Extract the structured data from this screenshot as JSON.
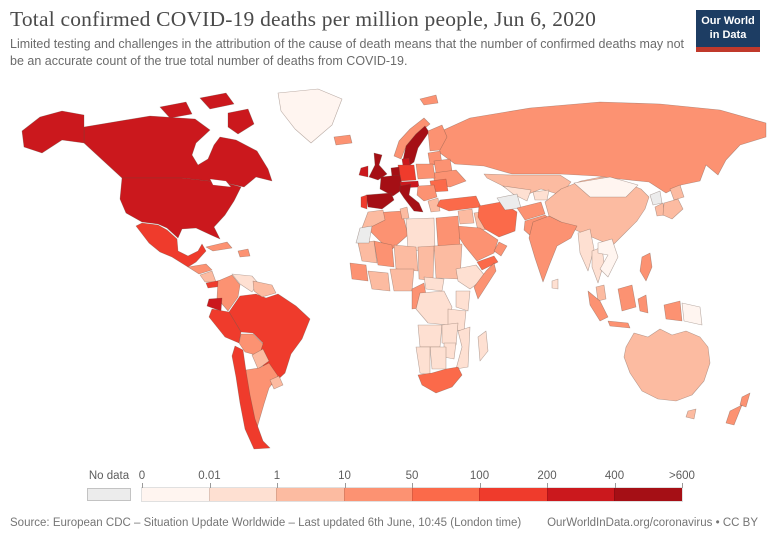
{
  "header": {
    "title": "Total confirmed COVID-19 deaths per million people, Jun 6, 2020",
    "subtitle": "Limited testing and challenges in the attribution of the cause of death means that the number of confirmed deaths may not be an accurate count of the true total number of deaths from COVID-19."
  },
  "logo": {
    "line1": "Our World",
    "line2": "in Data",
    "bg_color": "#1d3d63",
    "accent_color": "#c0392b"
  },
  "legend": {
    "no_data_label": "No data",
    "no_data_color": "#ececec",
    "tick_labels": [
      "0",
      "0.01",
      "1",
      "10",
      "50",
      "100",
      "200",
      "400",
      ">600"
    ],
    "band_colors": [
      "#fff5f0",
      "#fee0d2",
      "#fcbba1",
      "#fc9272",
      "#fb6a4a",
      "#ef3b2c",
      "#cb181d",
      "#a50f15"
    ]
  },
  "footer": {
    "source": "Source: European CDC – Situation Update Worldwide – Last updated 6th June, 10:45 (London time)",
    "link": "OurWorldInData.org/coronavirus",
    "separator": "•",
    "license": "CC BY"
  },
  "chart_data": {
    "type": "choropleth",
    "title": "Total confirmed COVID-19 deaths per million people",
    "date": "Jun 6, 2020",
    "unit": "deaths per million people",
    "bins": [
      "0–0.01",
      "0.01–1",
      "1–10",
      "10–50",
      "50–100",
      "100–200",
      "200–400",
      "400–>600"
    ],
    "no_data_regions": [
      "turkmenistan",
      "north-korea",
      "western-sahara"
    ],
    "countries": {
      "united-states": 6,
      "canada": 6,
      "greenland": 0,
      "iceland": 3,
      "mexico": 5,
      "guatemala": 3,
      "nicaragua": 2,
      "panama": 5,
      "cuba": 3,
      "dominican-republic": 3,
      "colombia": 3,
      "venezuela": 1,
      "guyana": 2,
      "ecuador": 6,
      "peru": 5,
      "brazil": 5,
      "bolivia": 3,
      "paraguay": 2,
      "chile": 5,
      "argentina": 3,
      "uruguay": 2,
      "united-kingdom": 7,
      "ireland": 6,
      "france": 7,
      "belgium-netherlands": 7,
      "germany": 5,
      "denmark": 6,
      "norway": 3,
      "sweden": 7,
      "finland": 3,
      "poland": 3,
      "baltic-states": 3,
      "belarus": 3,
      "ukraine": 3,
      "romania": 4,
      "balkans": 3,
      "greece": 2,
      "spain": 7,
      "portugal": 5,
      "italy": 7,
      "switzerland-austria": 6,
      "svalbard": 3,
      "russia": 3,
      "turkey": 4,
      "syria-levant": 2,
      "iraq": 2,
      "iran": 4,
      "saudi-arabia": 3,
      "yemen": 4,
      "oman": 3,
      "kazakhstan": 2,
      "uzbekistan": 1,
      "turkmenistan": "no-data",
      "kyrgyzstan-tajikistan": 1,
      "afghanistan": 3,
      "pakistan": 3,
      "india": 3,
      "sri-lanka": 1,
      "china": 2,
      "mongolia": 0,
      "north-korea": "no-data",
      "south-korea": 2,
      "japan": 2,
      "myanmar": 1,
      "thailand": 1,
      "vietnam-laos": 0,
      "malaysia": 2,
      "indonesia": 3,
      "philippines": 3,
      "papua-new-guinea": 0,
      "australia": 2,
      "new-zealand": 3,
      "morocco": 2,
      "western-sahara": "no-data",
      "algeria": 3,
      "tunisia": 2,
      "libya": 1,
      "egypt": 3,
      "mauritania": 2,
      "mali": 3,
      "niger": 2,
      "chad": 2,
      "sudan": 2,
      "ethiopia": 1,
      "somalia": 3,
      "senegal-guinea": 3,
      "ivory-coast-ghana": 2,
      "nigeria": 2,
      "cameroon": 3,
      "central-african-republic": 1,
      "dr-congo": 1,
      "kenya": 1,
      "tanzania": 1,
      "angola": 1,
      "zambia": 1,
      "mozambique": 1,
      "zimbabwe": 1,
      "botswana": 1,
      "namibia": 1,
      "south-africa": 4,
      "madagascar": 1
    }
  }
}
